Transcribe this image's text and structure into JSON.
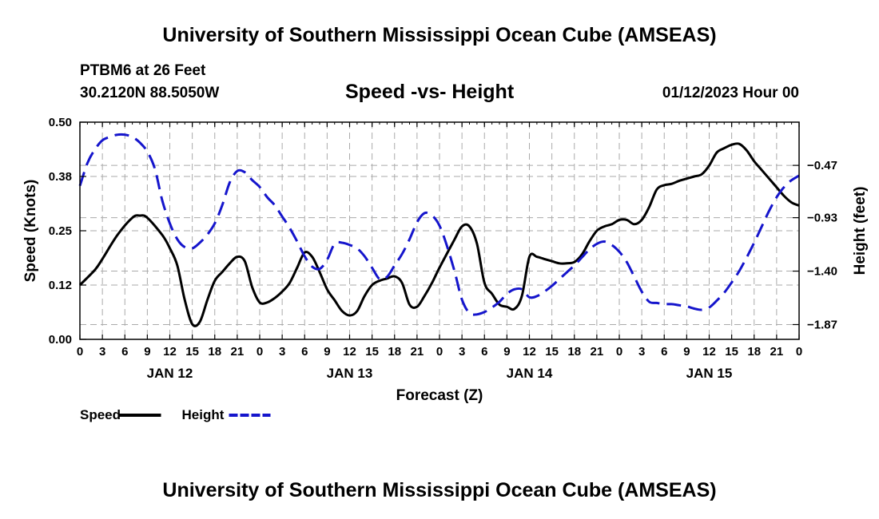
{
  "page": {
    "title_top": "University of Southern Mississippi Ocean Cube (AMSEAS)",
    "title_bottom": "University of Southern Mississippi Ocean Cube (AMSEAS)",
    "station": "PTBM6 at 26 Feet",
    "location": "30.2120N  88.5050W",
    "subtitle": "Speed -vs- Height",
    "datetime": "01/12/2023 Hour 00"
  },
  "chart_data": {
    "type": "line",
    "title": "Speed -vs- Height",
    "xlabel": "Forecast (Z)",
    "ylabel_left": "Speed (Knots)",
    "ylabel_right": "Height (feet)",
    "x_range_hours": [
      0,
      96
    ],
    "x_tick_labels": [
      "0",
      "3",
      "6",
      "9",
      "12",
      "15",
      "18",
      "21",
      "0",
      "3",
      "6",
      "9",
      "12",
      "15",
      "18",
      "21",
      "0",
      "3",
      "6",
      "9",
      "12",
      "15",
      "18",
      "21",
      "0",
      "3",
      "6",
      "9",
      "12",
      "15",
      "18",
      "21",
      "0"
    ],
    "day_labels": [
      {
        "label": "JAN 12",
        "hour": 12
      },
      {
        "label": "JAN 13",
        "hour": 36
      },
      {
        "label": "JAN 14",
        "hour": 60
      },
      {
        "label": "JAN 15",
        "hour": 84
      }
    ],
    "ylim_left": [
      0,
      0.5
    ],
    "yticks_left": [
      {
        "value": 0,
        "label": "0.00"
      },
      {
        "value": 0.125,
        "label": "0.12"
      },
      {
        "value": 0.25,
        "label": "0.25"
      },
      {
        "value": 0.375,
        "label": "0.38"
      },
      {
        "value": 0.5,
        "label": "0.50"
      }
    ],
    "ylim_right": [
      -2.0,
      -0.09
    ],
    "yticks_right": [
      {
        "value": -1.87,
        "label": "−1.87"
      },
      {
        "value": -1.4,
        "label": "−1.40"
      },
      {
        "value": -0.93,
        "label": "−0.93"
      },
      {
        "value": -0.47,
        "label": "−0.47"
      }
    ],
    "grid": true,
    "legend": [
      {
        "name": "Speed",
        "color": "#000000",
        "style": "solid"
      },
      {
        "name": "Height",
        "color": "#1515cc",
        "style": "dashed"
      }
    ],
    "series": [
      {
        "name": "Speed",
        "axis": "left",
        "color": "#000000",
        "x": [
          0,
          2,
          3,
          5,
          7,
          8,
          9,
          11,
          12,
          13,
          14,
          15,
          16,
          17,
          18,
          19,
          20,
          21,
          22,
          23,
          24,
          25,
          26,
          27,
          28,
          29,
          30,
          31,
          32,
          33,
          34,
          35,
          36,
          37,
          38,
          39,
          40,
          41,
          42,
          43,
          44,
          45,
          46,
          47,
          48,
          50,
          51,
          52,
          53,
          54,
          55,
          56,
          57,
          58,
          59,
          60,
          61,
          62,
          63,
          64,
          65,
          66,
          67,
          68,
          69,
          70,
          71,
          72,
          73,
          74,
          75,
          76,
          77,
          78,
          79,
          80,
          81,
          82,
          83,
          84,
          85,
          86,
          87,
          88,
          89,
          90,
          91,
          92,
          93,
          94,
          95,
          96
        ],
        "y": [
          0.125,
          0.16,
          0.185,
          0.24,
          0.28,
          0.285,
          0.28,
          0.24,
          0.21,
          0.17,
          0.09,
          0.035,
          0.04,
          0.09,
          0.135,
          0.155,
          0.175,
          0.19,
          0.18,
          0.12,
          0.085,
          0.085,
          0.095,
          0.11,
          0.13,
          0.165,
          0.2,
          0.19,
          0.155,
          0.115,
          0.09,
          0.065,
          0.055,
          0.065,
          0.1,
          0.125,
          0.135,
          0.14,
          0.145,
          0.13,
          0.08,
          0.075,
          0.1,
          0.13,
          0.165,
          0.23,
          0.26,
          0.26,
          0.22,
          0.13,
          0.105,
          0.08,
          0.075,
          0.07,
          0.1,
          0.19,
          0.19,
          0.185,
          0.18,
          0.175,
          0.175,
          0.178,
          0.195,
          0.225,
          0.25,
          0.26,
          0.265,
          0.275,
          0.275,
          0.265,
          0.275,
          0.305,
          0.345,
          0.355,
          0.358,
          0.365,
          0.37,
          0.375,
          0.38,
          0.4,
          0.43,
          0.44,
          0.448,
          0.45,
          0.435,
          0.41,
          0.39,
          0.37,
          0.35,
          0.33,
          0.315,
          0.308
        ]
      },
      {
        "name": "Height",
        "axis": "right",
        "color": "#1515cc",
        "x": [
          0,
          1,
          2,
          3,
          4,
          5,
          6,
          7,
          8,
          9,
          10,
          11,
          12,
          13,
          14,
          15,
          16,
          17,
          18,
          19,
          20,
          21,
          22,
          23,
          24,
          25,
          26,
          27,
          28,
          29,
          30,
          31,
          32,
          33,
          34,
          35,
          36,
          37,
          38,
          39,
          40,
          41,
          42,
          43,
          44,
          45,
          46,
          47,
          48,
          49,
          50,
          51,
          52,
          53,
          54,
          55,
          56,
          57,
          58,
          59,
          60,
          61,
          62,
          63,
          64,
          65,
          66,
          67,
          68,
          69,
          70,
          71,
          72,
          73,
          74,
          75,
          76,
          77,
          78,
          79,
          80,
          81,
          82,
          83,
          84,
          85,
          86,
          87,
          88,
          89,
          90,
          91,
          92,
          93,
          94,
          95,
          96
        ],
        "y": [
          -0.65,
          -0.45,
          -0.33,
          -0.25,
          -0.22,
          -0.2,
          -0.2,
          -0.22,
          -0.27,
          -0.35,
          -0.5,
          -0.78,
          -0.98,
          -1.12,
          -1.19,
          -1.2,
          -1.15,
          -1.08,
          -0.98,
          -0.82,
          -0.62,
          -0.52,
          -0.53,
          -0.6,
          -0.66,
          -0.75,
          -0.82,
          -0.92,
          -1.02,
          -1.14,
          -1.27,
          -1.36,
          -1.38,
          -1.3,
          -1.16,
          -1.15,
          -1.17,
          -1.2,
          -1.27,
          -1.37,
          -1.47,
          -1.45,
          -1.35,
          -1.25,
          -1.12,
          -0.97,
          -0.89,
          -0.91,
          -1.0,
          -1.18,
          -1.4,
          -1.65,
          -1.77,
          -1.78,
          -1.76,
          -1.72,
          -1.67,
          -1.6,
          -1.56,
          -1.56,
          -1.63,
          -1.62,
          -1.58,
          -1.53,
          -1.47,
          -1.41,
          -1.35,
          -1.28,
          -1.21,
          -1.16,
          -1.14,
          -1.17,
          -1.23,
          -1.32,
          -1.45,
          -1.58,
          -1.67,
          -1.68,
          -1.69,
          -1.69,
          -1.7,
          -1.71,
          -1.73,
          -1.74,
          -1.72,
          -1.66,
          -1.59,
          -1.5,
          -1.4,
          -1.28,
          -1.15,
          -1.01,
          -0.87,
          -0.75,
          -0.66,
          -0.6,
          -0.56
        ]
      }
    ]
  }
}
